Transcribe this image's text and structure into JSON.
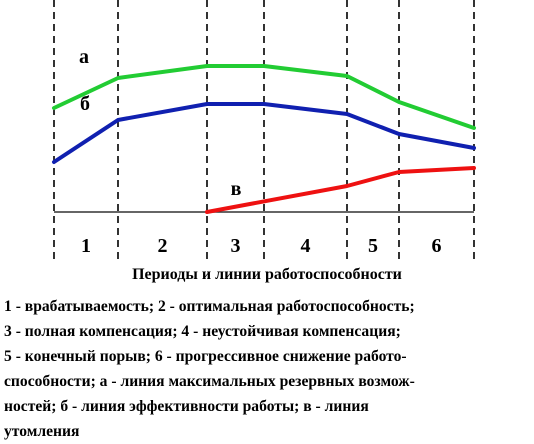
{
  "chart_data": {
    "type": "line",
    "periods": [
      "1",
      "2",
      "3",
      "4",
      "5",
      "6"
    ],
    "curves": [
      {
        "label": "а",
        "color": "#22cc33",
        "points": [
          [
            0,
            0.52
          ],
          [
            1,
            0.67
          ],
          [
            2,
            0.73
          ],
          [
            3,
            0.73
          ],
          [
            4,
            0.68
          ],
          [
            5,
            0.55
          ],
          [
            6,
            0.42
          ]
        ]
      },
      {
        "label": "б",
        "color": "#1020b0",
        "points": [
          [
            0,
            0.25
          ],
          [
            1,
            0.46
          ],
          [
            2,
            0.54
          ],
          [
            3,
            0.54
          ],
          [
            4,
            0.49
          ],
          [
            5,
            0.39
          ],
          [
            6,
            0.32
          ]
        ]
      },
      {
        "label": "в",
        "color": "#ee1111",
        "points": [
          [
            2,
            0
          ],
          [
            4,
            0.13
          ],
          [
            5,
            0.2
          ],
          [
            6,
            0.22
          ]
        ]
      }
    ]
  },
  "caption": {
    "title": "Периоды и линии работоспособности",
    "legend_lines": [
      "1 - врабатываемость; 2 - оптимальная работоспособность;",
      "3 - полная компенсация; 4 - неустойчивая компенсация;",
      "5 - конечный порыв; 6 - прогрессивное снижение работо-",
      "способности; а - линия максимальных резервных возмож-",
      "ностей; б - линия эффективности работы; в - линия",
      "утомления"
    ]
  }
}
